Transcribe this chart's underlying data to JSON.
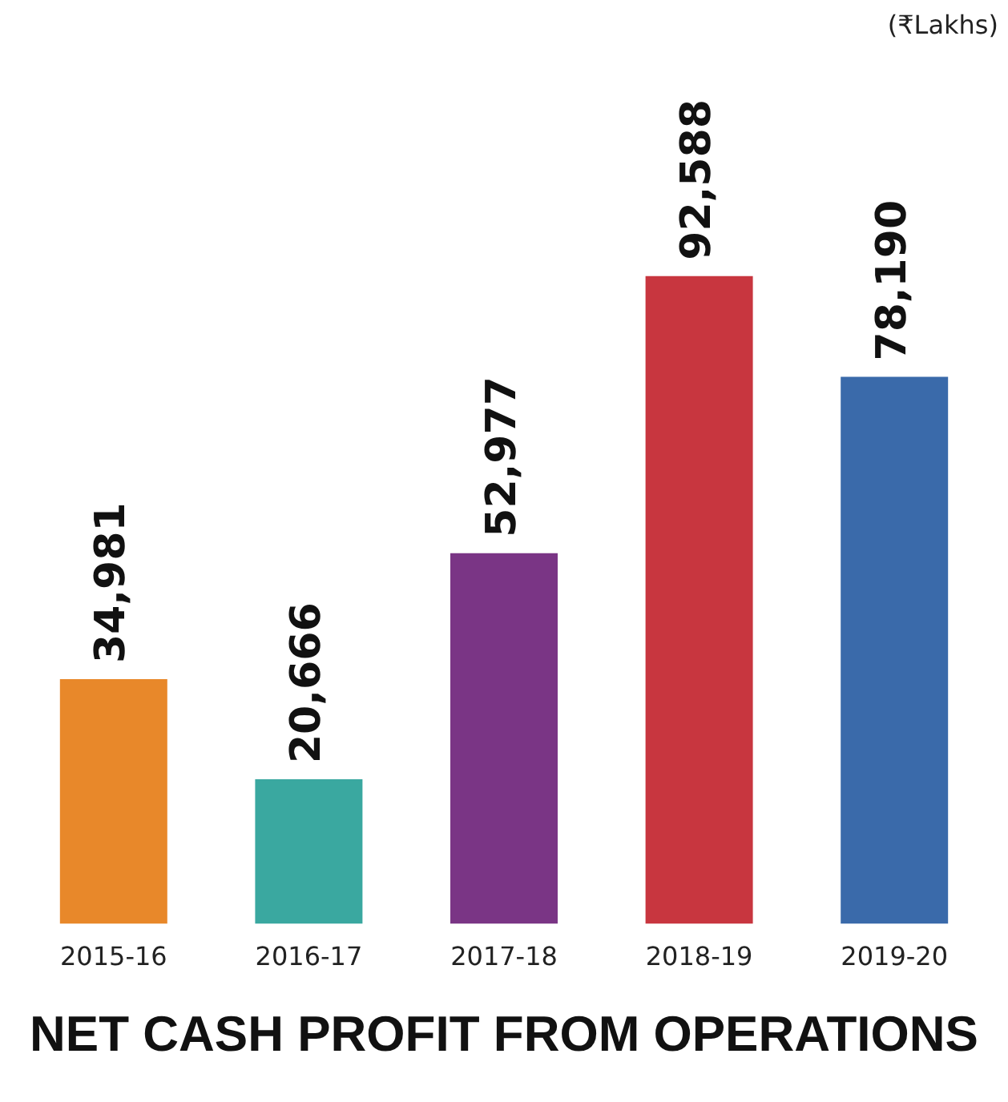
{
  "chart_data": {
    "type": "bar",
    "title": "NET CASH PROFIT FROM OPERATIONS",
    "annotations": [
      "(₹Lakhs)"
    ],
    "categories": [
      "2015-16",
      "2016-17",
      "2017-18",
      "2018-19",
      "2019-20"
    ],
    "values": [
      34981,
      20666,
      52977,
      92588,
      78190
    ],
    "colors": [
      "#e8882a",
      "#3aa8a0",
      "#7a3585",
      "#c8363f",
      "#3a6aaa"
    ],
    "value_labels": [
      "34,981",
      "20,666",
      "52,977",
      "92,588",
      "78,190"
    ],
    "grid": false,
    "legend": false
  }
}
